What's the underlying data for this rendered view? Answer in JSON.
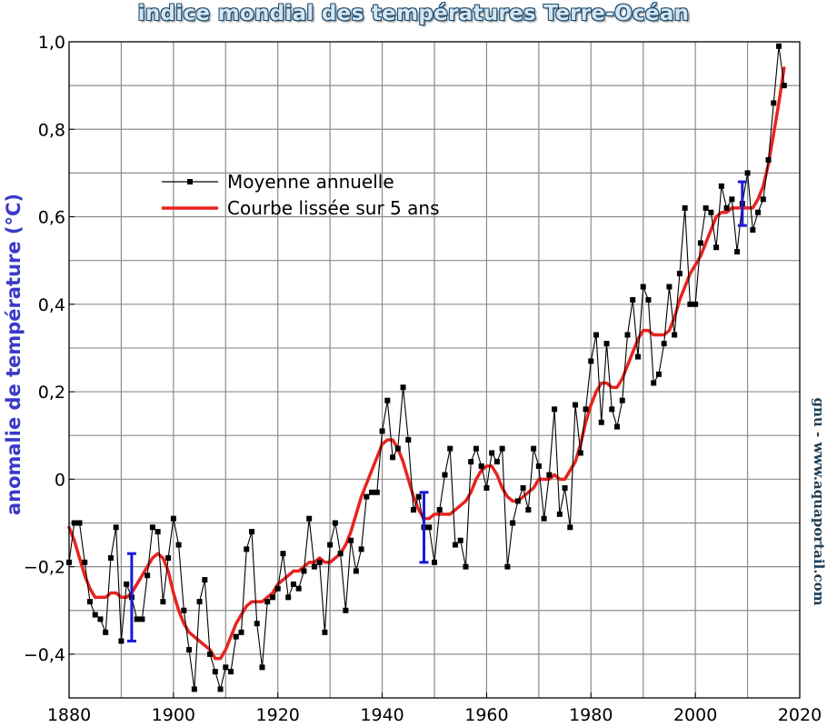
{
  "chart_data": {
    "type": "line",
    "title": "indice mondial des températures Terre-Océan",
    "xlabel": "",
    "ylabel": "anomalie de température (°C)",
    "credit": "gnu - www.aquaportail.com",
    "xlim": [
      1880,
      2020
    ],
    "ylim": [
      -0.5,
      1.0
    ],
    "x_ticks": [
      1880,
      1900,
      1920,
      1940,
      1960,
      1980,
      2000,
      2020
    ],
    "x_tick_labels": [
      "1880",
      "1900",
      "1920",
      "1940",
      "1960",
      "1980",
      "2000",
      "2020"
    ],
    "y_ticks": [
      -0.4,
      -0.2,
      0,
      0.2,
      0.4,
      0.6,
      0.8,
      1.0
    ],
    "y_tick_labels": [
      "−0,4",
      "−0,2",
      "0",
      "0,2",
      "0,4",
      "0,6",
      "0,8",
      "1,0"
    ],
    "grid": true,
    "legend_position": "upper-left",
    "legend": [
      "Moyenne annuelle",
      "Courbe lissée sur 5 ans"
    ],
    "series": [
      {
        "name": "Moyenne annuelle",
        "color": "#000000",
        "marker": "square",
        "x": [
          1880,
          1881,
          1882,
          1883,
          1884,
          1885,
          1886,
          1887,
          1888,
          1889,
          1890,
          1891,
          1892,
          1893,
          1894,
          1895,
          1896,
          1897,
          1898,
          1899,
          1900,
          1901,
          1902,
          1903,
          1904,
          1905,
          1906,
          1907,
          1908,
          1909,
          1910,
          1911,
          1912,
          1913,
          1914,
          1915,
          1916,
          1917,
          1918,
          1919,
          1920,
          1921,
          1922,
          1923,
          1924,
          1925,
          1926,
          1927,
          1928,
          1929,
          1930,
          1931,
          1932,
          1933,
          1934,
          1935,
          1936,
          1937,
          1938,
          1939,
          1940,
          1941,
          1942,
          1943,
          1944,
          1945,
          1946,
          1947,
          1948,
          1949,
          1950,
          1951,
          1952,
          1953,
          1954,
          1955,
          1956,
          1957,
          1958,
          1959,
          1960,
          1961,
          1962,
          1963,
          1964,
          1965,
          1966,
          1967,
          1968,
          1969,
          1970,
          1971,
          1972,
          1973,
          1974,
          1975,
          1976,
          1977,
          1978,
          1979,
          1980,
          1981,
          1982,
          1983,
          1984,
          1985,
          1986,
          1987,
          1988,
          1989,
          1990,
          1991,
          1992,
          1993,
          1994,
          1995,
          1996,
          1997,
          1998,
          1999,
          2000,
          2001,
          2002,
          2003,
          2004,
          2005,
          2006,
          2007,
          2008,
          2009,
          2010,
          2011,
          2012,
          2013,
          2014,
          2015,
          2016,
          2017
        ],
        "y": [
          -0.19,
          -0.1,
          -0.1,
          -0.19,
          -0.28,
          -0.31,
          -0.32,
          -0.35,
          -0.18,
          -0.11,
          -0.37,
          -0.24,
          -0.27,
          -0.32,
          -0.32,
          -0.22,
          -0.11,
          -0.12,
          -0.28,
          -0.18,
          -0.09,
          -0.15,
          -0.3,
          -0.39,
          -0.48,
          -0.28,
          -0.23,
          -0.4,
          -0.44,
          -0.48,
          -0.43,
          -0.44,
          -0.36,
          -0.35,
          -0.16,
          -0.12,
          -0.33,
          -0.43,
          -0.28,
          -0.27,
          -0.25,
          -0.17,
          -0.27,
          -0.24,
          -0.25,
          -0.21,
          -0.09,
          -0.2,
          -0.19,
          -0.35,
          -0.15,
          -0.1,
          -0.17,
          -0.3,
          -0.14,
          -0.21,
          -0.16,
          -0.04,
          -0.03,
          -0.03,
          0.11,
          0.18,
          0.05,
          0.07,
          0.21,
          0.09,
          -0.07,
          -0.04,
          -0.11,
          -0.11,
          -0.19,
          -0.07,
          0.01,
          0.07,
          -0.15,
          -0.14,
          -0.2,
          0.04,
          0.07,
          0.03,
          -0.02,
          0.06,
          0.04,
          0.07,
          -0.2,
          -0.1,
          -0.05,
          -0.02,
          -0.07,
          0.07,
          0.03,
          -0.09,
          0.01,
          0.16,
          -0.08,
          -0.02,
          -0.11,
          0.17,
          0.06,
          0.16,
          0.27,
          0.33,
          0.13,
          0.31,
          0.16,
          0.12,
          0.18,
          0.33,
          0.41,
          0.28,
          0.44,
          0.41,
          0.22,
          0.24,
          0.31,
          0.44,
          0.33,
          0.47,
          0.62,
          0.4,
          0.4,
          0.54,
          0.62,
          0.61,
          0.53,
          0.67,
          0.62,
          0.64,
          0.52,
          0.63,
          0.7,
          0.57,
          0.61,
          0.64,
          0.73,
          0.86,
          0.99,
          0.9
        ]
      },
      {
        "name": "Courbe lissée sur 5 ans",
        "color": "#e8231f",
        "x": [
          1880,
          1881,
          1882,
          1883,
          1884,
          1885,
          1886,
          1887,
          1888,
          1889,
          1890,
          1891,
          1892,
          1893,
          1894,
          1895,
          1896,
          1897,
          1898,
          1899,
          1900,
          1901,
          1902,
          1903,
          1904,
          1905,
          1906,
          1907,
          1908,
          1909,
          1910,
          1911,
          1912,
          1913,
          1914,
          1915,
          1916,
          1917,
          1918,
          1919,
          1920,
          1921,
          1922,
          1923,
          1924,
          1925,
          1926,
          1927,
          1928,
          1929,
          1930,
          1931,
          1932,
          1933,
          1934,
          1935,
          1936,
          1937,
          1938,
          1939,
          1940,
          1941,
          1942,
          1943,
          1944,
          1945,
          1946,
          1947,
          1948,
          1949,
          1950,
          1951,
          1952,
          1953,
          1954,
          1955,
          1956,
          1957,
          1958,
          1959,
          1960,
          1961,
          1962,
          1963,
          1964,
          1965,
          1966,
          1967,
          1968,
          1969,
          1970,
          1971,
          1972,
          1973,
          1974,
          1975,
          1976,
          1977,
          1978,
          1979,
          1980,
          1981,
          1982,
          1983,
          1984,
          1985,
          1986,
          1987,
          1988,
          1989,
          1990,
          1991,
          1992,
          1993,
          1994,
          1995,
          1996,
          1997,
          1998,
          1999,
          2000,
          2001,
          2002,
          2003,
          2004,
          2005,
          2006,
          2007,
          2008,
          2009,
          2010,
          2011,
          2012,
          2013,
          2014,
          2015,
          2016,
          2017
        ],
        "y": [
          -0.11,
          -0.14,
          -0.18,
          -0.22,
          -0.25,
          -0.27,
          -0.27,
          -0.27,
          -0.26,
          -0.26,
          -0.27,
          -0.27,
          -0.26,
          -0.24,
          -0.22,
          -0.2,
          -0.18,
          -0.17,
          -0.18,
          -0.21,
          -0.26,
          -0.3,
          -0.33,
          -0.35,
          -0.36,
          -0.37,
          -0.38,
          -0.39,
          -0.41,
          -0.41,
          -0.39,
          -0.36,
          -0.33,
          -0.31,
          -0.29,
          -0.28,
          -0.28,
          -0.28,
          -0.27,
          -0.26,
          -0.24,
          -0.23,
          -0.22,
          -0.21,
          -0.21,
          -0.2,
          -0.19,
          -0.19,
          -0.18,
          -0.19,
          -0.19,
          -0.18,
          -0.17,
          -0.15,
          -0.12,
          -0.08,
          -0.04,
          -0.01,
          0.02,
          0.05,
          0.08,
          0.09,
          0.09,
          0.07,
          0.04,
          0.0,
          -0.04,
          -0.07,
          -0.09,
          -0.09,
          -0.08,
          -0.08,
          -0.08,
          -0.08,
          -0.07,
          -0.06,
          -0.05,
          -0.03,
          0.0,
          0.02,
          0.03,
          0.03,
          0.01,
          -0.02,
          -0.04,
          -0.05,
          -0.05,
          -0.04,
          -0.03,
          -0.02,
          0.0,
          0.0,
          0.0,
          0.01,
          0.0,
          0.0,
          0.02,
          0.04,
          0.08,
          0.13,
          0.17,
          0.2,
          0.22,
          0.22,
          0.21,
          0.21,
          0.23,
          0.26,
          0.29,
          0.32,
          0.34,
          0.34,
          0.33,
          0.33,
          0.33,
          0.34,
          0.37,
          0.41,
          0.44,
          0.47,
          0.49,
          0.51,
          0.54,
          0.57,
          0.6,
          0.61,
          0.61,
          0.62,
          0.62,
          0.62,
          0.62,
          0.62,
          0.64,
          0.67,
          0.72,
          0.79,
          0.86,
          0.94
        ]
      }
    ],
    "error_bars": {
      "color": "#1a1ad6",
      "items": [
        {
          "x": 1892,
          "y_low": -0.37,
          "y_high": -0.17
        },
        {
          "x": 1948,
          "y_low": -0.19,
          "y_high": -0.03
        },
        {
          "x": 2009,
          "y_low": 0.58,
          "y_high": 0.68
        }
      ]
    }
  }
}
